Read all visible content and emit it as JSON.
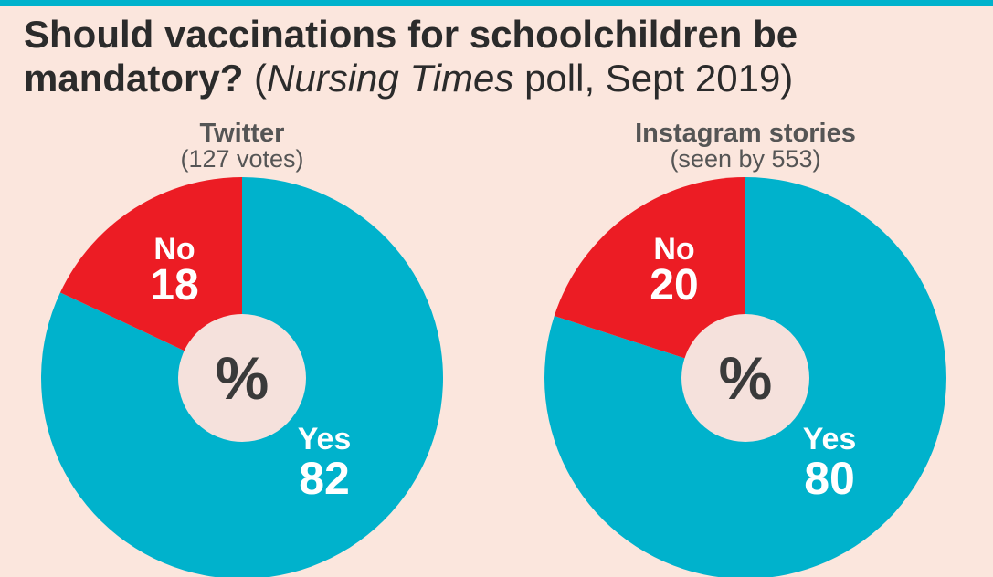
{
  "title": {
    "bold": "Should vaccinations for schoolchildren be mandatory?",
    "paren_open": "(",
    "italic": "Nursing Times",
    "rest": "poll, Sept 2019)"
  },
  "colors": {
    "yes": "#00b2cc",
    "no": "#ec1c24",
    "background": "#fbe6dd",
    "center": "#f5e1dc"
  },
  "center_symbol": "%",
  "chart_data": [
    {
      "type": "pie",
      "title": "Twitter",
      "subtitle": "(127 votes)",
      "unit": "%",
      "slices": [
        {
          "label": "Yes",
          "value": 82
        },
        {
          "label": "No",
          "value": 18
        }
      ]
    },
    {
      "type": "pie",
      "title": "Instagram stories",
      "subtitle": "(seen by 553)",
      "unit": "%",
      "slices": [
        {
          "label": "Yes",
          "value": 80
        },
        {
          "label": "No",
          "value": 20
        }
      ]
    }
  ]
}
